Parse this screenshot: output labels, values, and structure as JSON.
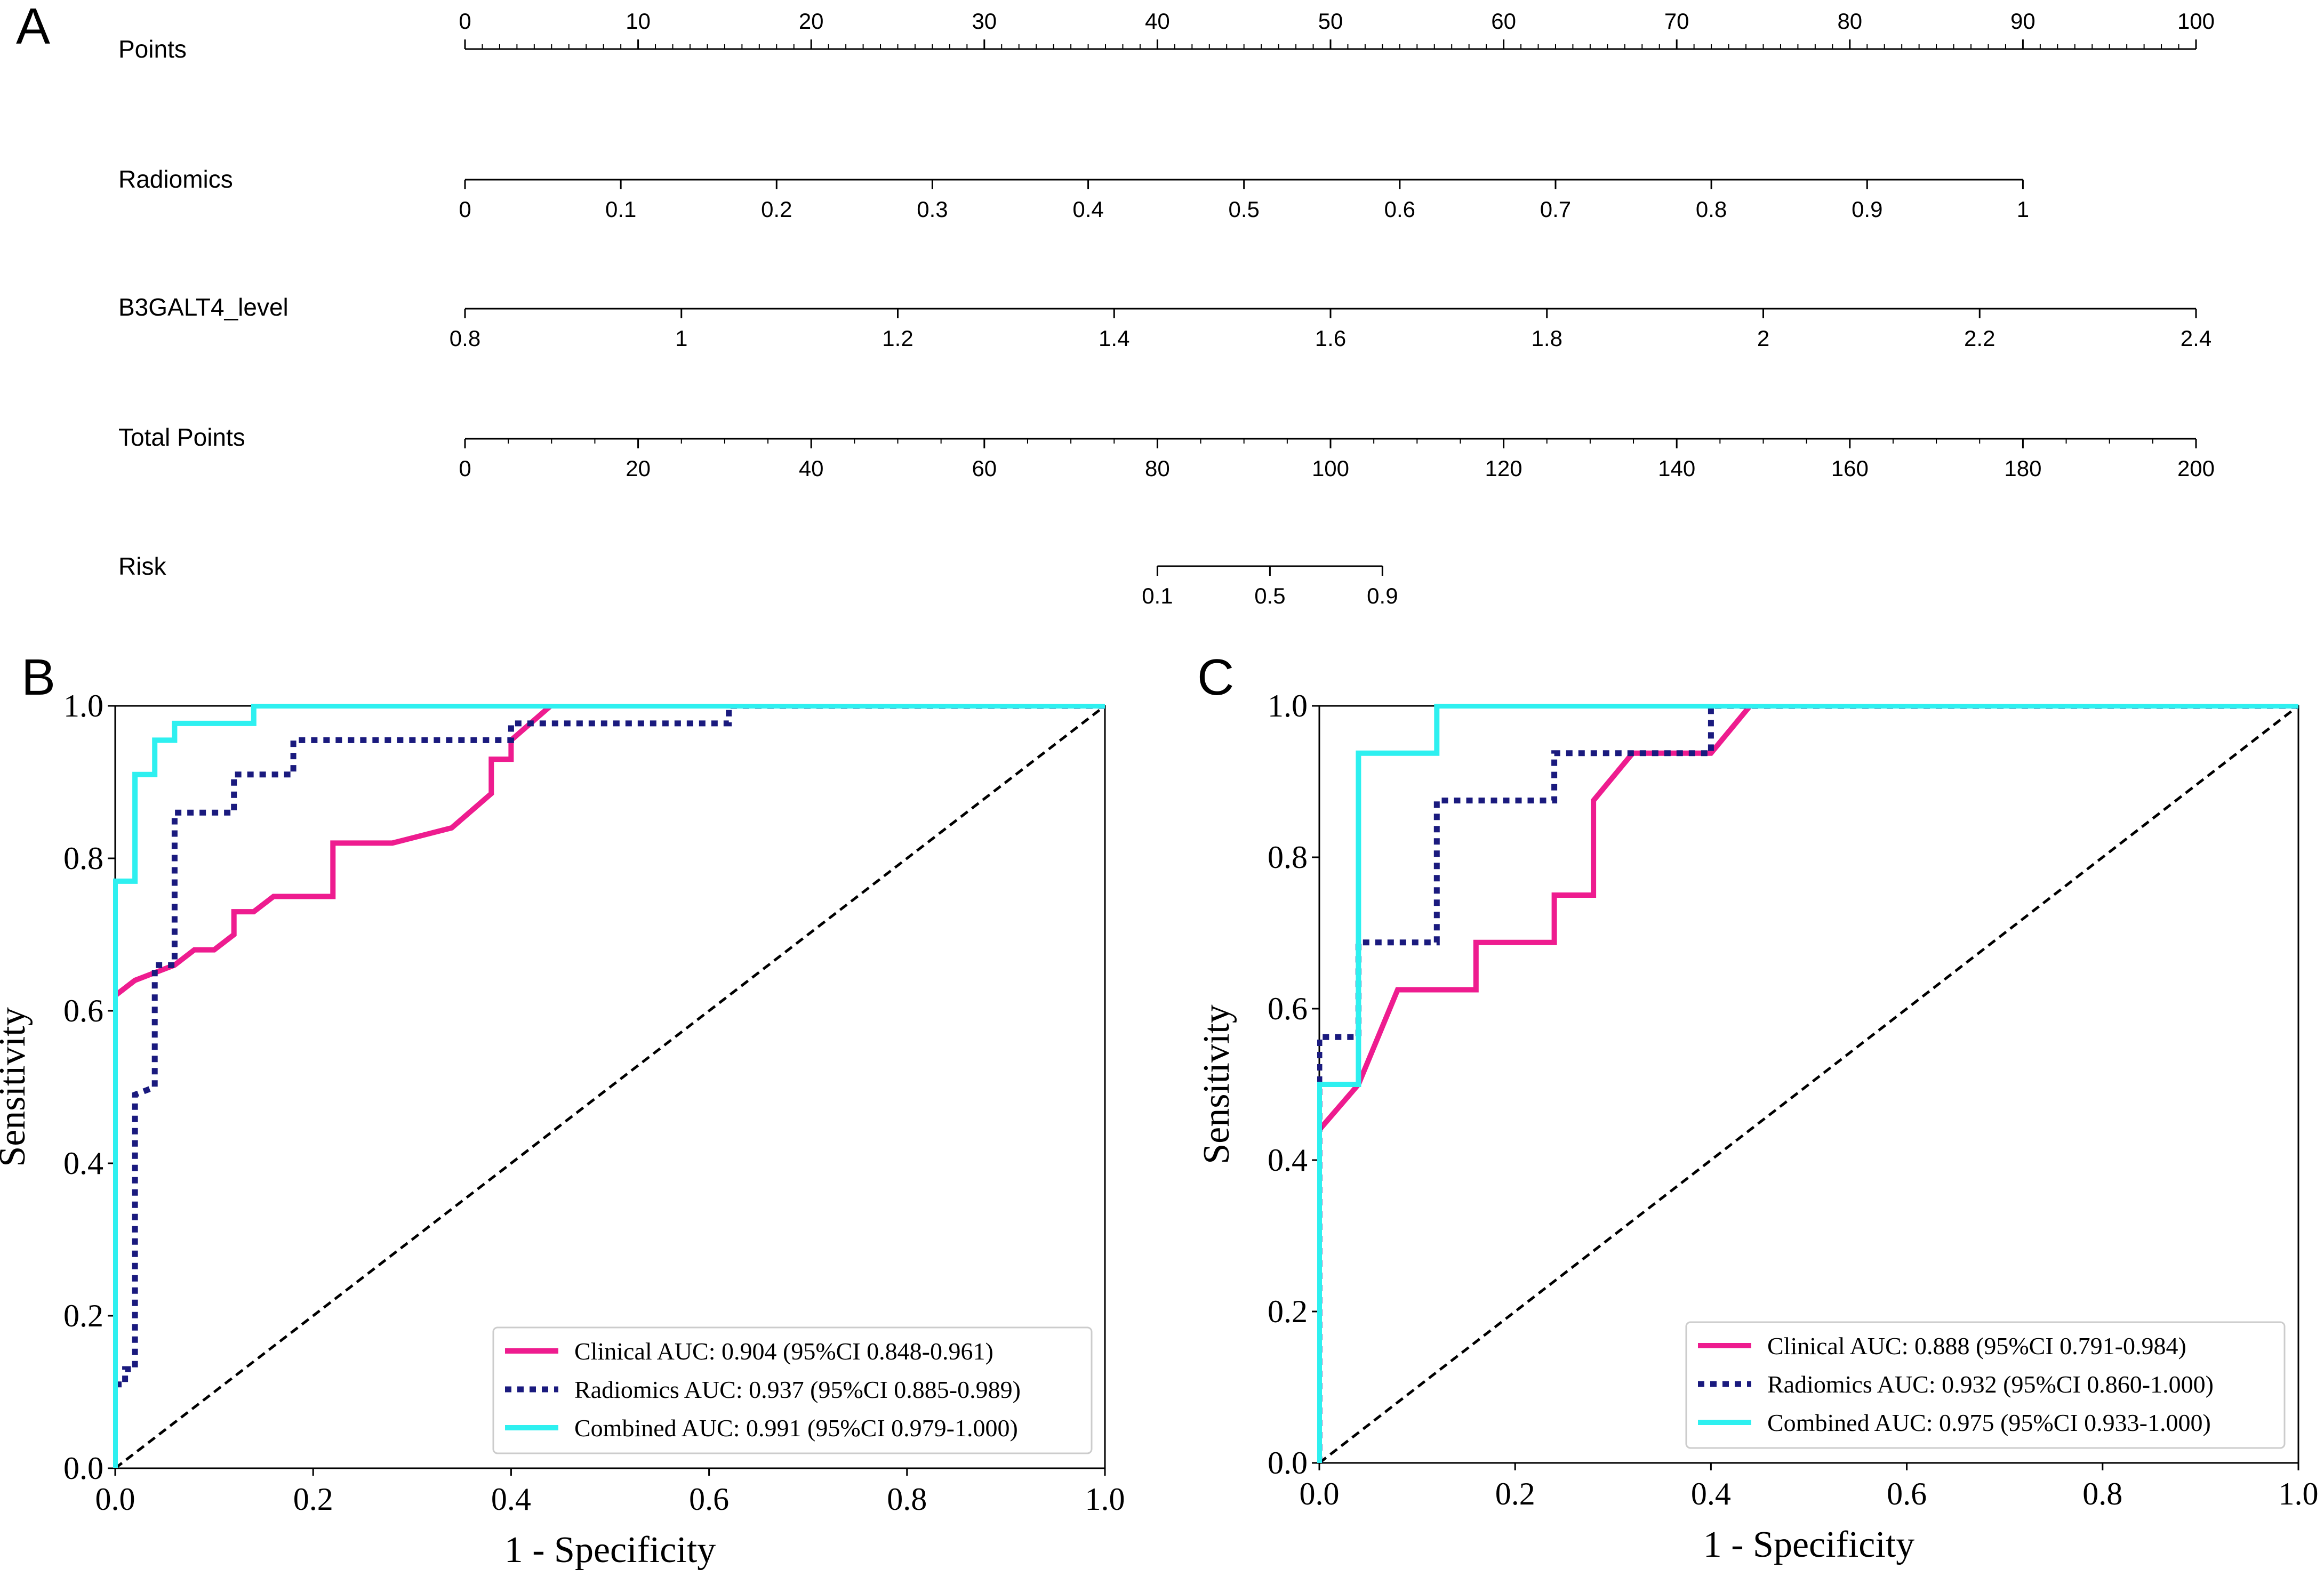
{
  "chart_data": [
    {
      "panel": "A",
      "type": "nomogram",
      "scales": [
        {
          "name": "Points",
          "ticks": [
            "0",
            "10",
            "20",
            "30",
            "40",
            "50",
            "60",
            "70",
            "80",
            "90",
            "100"
          ],
          "min": 0,
          "max": 100
        },
        {
          "name": "Radiomics",
          "ticks": [
            "0",
            "0.1",
            "0.2",
            "0.3",
            "0.4",
            "0.5",
            "0.6",
            "0.7",
            "0.8",
            "0.9",
            "1"
          ],
          "min": 0,
          "max": 1,
          "points_min": 0,
          "points_max": 90
        },
        {
          "name": "B3GALT4_level",
          "ticks": [
            "0.8",
            "1",
            "1.2",
            "1.4",
            "1.6",
            "1.8",
            "2",
            "2.2",
            "2.4"
          ],
          "min": 0.8,
          "max": 2.4,
          "points_min": 0,
          "points_max": 100
        },
        {
          "name": "Total Points",
          "ticks": [
            "0",
            "20",
            "40",
            "60",
            "80",
            "100",
            "120",
            "140",
            "160",
            "180",
            "200"
          ],
          "min": 0,
          "max": 200
        },
        {
          "name": "Risk",
          "ticks": [
            "0.1",
            "0.5",
            "0.9"
          ],
          "total_points_min": 80,
          "total_points_max": 106
        }
      ]
    },
    {
      "panel": "B",
      "type": "line",
      "title": "",
      "xlabel": "1 - Specificity",
      "ylabel": "Sensitivity",
      "xlim": [
        0,
        1
      ],
      "ylim": [
        0,
        1
      ],
      "xticks": [
        "0.0",
        "0.2",
        "0.4",
        "0.6",
        "0.8",
        "1.0"
      ],
      "yticks": [
        "0.0",
        "0.2",
        "0.4",
        "0.6",
        "0.8",
        "1.0"
      ],
      "legend": "lower-right",
      "series": [
        {
          "name": "Clinical",
          "label": "Clinical AUC: 0.904 (95%CI 0.848-0.961)",
          "color": "#ee1c8f",
          "style": "solid",
          "x": [
            0,
            0,
            0.02,
            0.04,
            0.06,
            0.08,
            0.1,
            0.12,
            0.12,
            0.14,
            0.16,
            0.22,
            0.22,
            0.28,
            0.34,
            0.38,
            0.38,
            0.4,
            0.4,
            0.44,
            1.0
          ],
          "y": [
            0,
            0.62,
            0.64,
            0.65,
            0.66,
            0.68,
            0.68,
            0.7,
            0.73,
            0.73,
            0.75,
            0.75,
            0.82,
            0.82,
            0.84,
            0.885,
            0.93,
            0.93,
            0.955,
            1.0,
            1.0
          ]
        },
        {
          "name": "Radiomics",
          "label": "Radiomics AUC: 0.937 (95%CI 0.885-0.989)",
          "color": "#1a1a7e",
          "style": "dotted",
          "x": [
            0,
            0.01,
            0.01,
            0.02,
            0.02,
            0.04,
            0.04,
            0.06,
            0.06,
            0.12,
            0.12,
            0.18,
            0.18,
            0.4,
            0.4,
            0.62,
            0.62,
            1.0
          ],
          "y": [
            0.11,
            0.11,
            0.13,
            0.13,
            0.49,
            0.5,
            0.66,
            0.66,
            0.86,
            0.86,
            0.91,
            0.91,
            0.955,
            0.955,
            0.977,
            0.977,
            1.0,
            1.0
          ]
        },
        {
          "name": "Combined",
          "label": "Combined AUC: 0.991 (95%CI 0.979-1.000)",
          "color": "#2ef0f0",
          "style": "solid",
          "x": [
            0,
            0,
            0.02,
            0.02,
            0.04,
            0.04,
            0.06,
            0.06,
            0.14,
            0.14,
            1.0
          ],
          "y": [
            0,
            0.77,
            0.77,
            0.91,
            0.91,
            0.955,
            0.955,
            0.977,
            0.977,
            1.0,
            1.0
          ]
        },
        {
          "name": "Reference",
          "color": "#000000",
          "style": "dashed",
          "x": [
            0,
            1
          ],
          "y": [
            0,
            1
          ]
        }
      ]
    },
    {
      "panel": "C",
      "type": "line",
      "title": "",
      "xlabel": "1 - Specificity",
      "ylabel": "Sensitivity",
      "xlim": [
        0,
        1
      ],
      "ylim": [
        0,
        1
      ],
      "xticks": [
        "0.0",
        "0.2",
        "0.4",
        "0.6",
        "0.8",
        "1.0"
      ],
      "yticks": [
        "0.0",
        "0.2",
        "0.4",
        "0.6",
        "0.8",
        "1.0"
      ],
      "legend": "lower-right",
      "series": [
        {
          "name": "Clinical",
          "label": "Clinical AUC: 0.888 (95%CI 0.791-0.984)",
          "color": "#ee1c8f",
          "style": "solid",
          "x": [
            0,
            0,
            0.04,
            0.08,
            0.16,
            0.16,
            0.24,
            0.24,
            0.28,
            0.28,
            0.32,
            0.4,
            0.44,
            1.0
          ],
          "y": [
            0,
            0.44,
            0.5,
            0.625,
            0.625,
            0.6875,
            0.6875,
            0.75,
            0.75,
            0.875,
            0.9375,
            0.9375,
            1.0,
            1.0
          ]
        },
        {
          "name": "Radiomics",
          "label": "Radiomics AUC: 0.932 (95%CI 0.860-1.000)",
          "color": "#1a1a7e",
          "style": "dotted",
          "x": [
            0,
            0,
            0.04,
            0.04,
            0.12,
            0.12,
            0.24,
            0.24,
            0.4,
            0.4,
            1.0
          ],
          "y": [
            0,
            0.5625,
            0.5625,
            0.6875,
            0.6875,
            0.875,
            0.875,
            0.9375,
            0.9375,
            1.0,
            1.0
          ]
        },
        {
          "name": "Combined",
          "label": "Combined AUC: 0.975 (95%CI 0.933-1.000)",
          "color": "#2ef0f0",
          "style": "solid",
          "x": [
            0,
            0,
            0.04,
            0.04,
            0.12,
            0.12,
            1.0
          ],
          "y": [
            0,
            0.5,
            0.5,
            0.9375,
            0.9375,
            1.0,
            1.0
          ]
        },
        {
          "name": "Reference",
          "color": "#000000",
          "style": "dashed",
          "x": [
            0,
            1
          ],
          "y": [
            0,
            1
          ]
        }
      ]
    }
  ],
  "panel_labels": {
    "a": "A",
    "b": "B",
    "c": "C"
  }
}
